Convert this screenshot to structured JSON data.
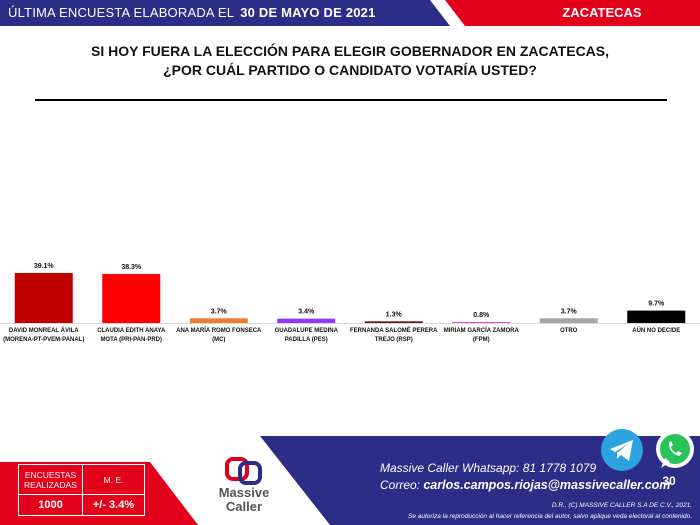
{
  "header": {
    "survey_label": "ÚLTIMA ENCUESTA ELABORADA EL",
    "survey_date": "30 DE MAYO DE 2021",
    "state": "ZACATECAS",
    "question_line1": "SI HOY FUERA LA ELECCIÓN PARA ELEGIR GOBERNADOR EN ZACATECAS,",
    "question_line2": "¿POR CUÁL PARTIDO O CANDIDATO VOTARÍA USTED?"
  },
  "chart_data": {
    "type": "bar",
    "categories": [
      [
        "DAVID MONREAL ÁVILA",
        "(MORENA-PT-PVEM-PANAL)"
      ],
      [
        "CLAUDIA EDITH ANAYA",
        "MOTA (PRI-PAN-PRD)"
      ],
      [
        "ANA MARÍA ROMO FONSECA",
        "(MC)"
      ],
      [
        "GUADALUPE MEDINA",
        "PADILLA  (PES)"
      ],
      [
        "FERNANDA SALOMÉ PERERA",
        "TREJO (RSP)"
      ],
      [
        "MIRIAM GARCÍA ZAMORA",
        "(FPM)"
      ],
      [
        "OTRO"
      ],
      [
        "AÚN NO DECIDE"
      ]
    ],
    "values": [
      39.1,
      38.3,
      3.7,
      3.4,
      1.3,
      0.8,
      3.7,
      9.7
    ],
    "value_labels": [
      "39.1%",
      "38.3%",
      "3.7%",
      "3.4%",
      "1.3%",
      "0.8%",
      "3.7%",
      "9.7%"
    ],
    "colors": [
      "#c00000",
      "#ff0000",
      "#ed7d31",
      "#9933ff",
      "#6b0f0f",
      "#ee44ee",
      "#a6a6a6",
      "#000000"
    ],
    "ylim": [
      0,
      45
    ],
    "grid": false
  },
  "footer": {
    "stats": {
      "col1_label_line1": "ENCUESTAS",
      "col1_label_line2": "REALIZADAS",
      "col2_label": "M. E.",
      "col1_value": "1000",
      "col2_value": "+/- 3.4%"
    },
    "logo_text_line1": "Massive",
    "logo_text_line2": "Caller",
    "whatsapp_label": "Massive Caller Whatsapp:",
    "whatsapp_number": "81 1778 1079",
    "email_label": "Correo:",
    "email": "carlos.campos.riojas@massivecaller.com",
    "legal_line1": "D.R., (C) MASSIVE CALLER S.A DE C.V., 2021.",
    "legal_line2": "Se autoriza la reproducción al hacer referencia del autor, salvo aplique veda electoral al contenido.",
    "page_number": "30",
    "telegram_icon": "telegram-icon",
    "whatsapp_icon": "whatsapp-icon"
  },
  "colors": {
    "navy": "#2b2d86",
    "red": "#e3001b"
  }
}
